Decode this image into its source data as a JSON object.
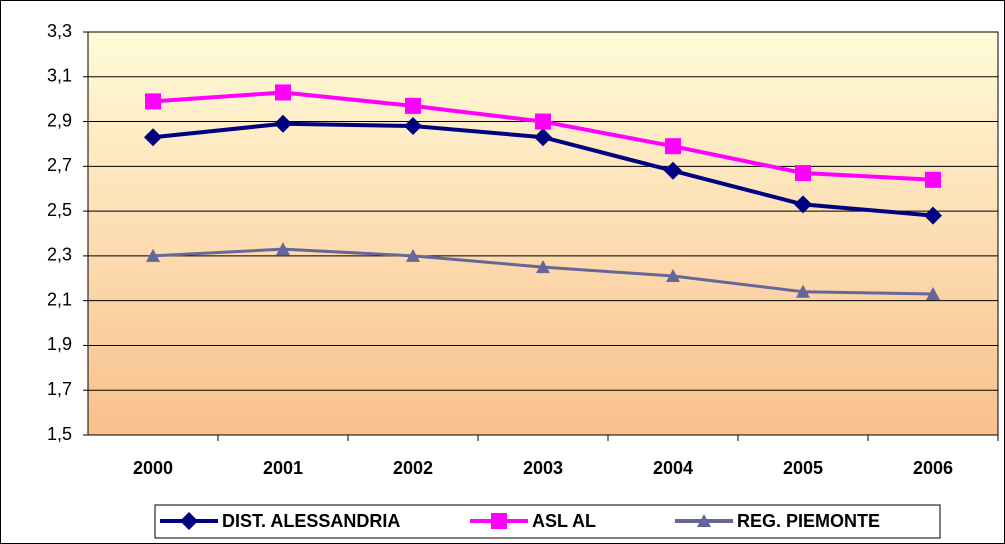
{
  "chart_data": {
    "type": "line",
    "categories": [
      "2000",
      "2001",
      "2002",
      "2003",
      "2004",
      "2005",
      "2006"
    ],
    "series": [
      {
        "name": "DIST. ALESSANDRIA",
        "color": "#000080",
        "marker": "diamond",
        "values": [
          2.83,
          2.89,
          2.88,
          2.83,
          2.68,
          2.53,
          2.48
        ]
      },
      {
        "name": "ASL AL",
        "color": "#ff00ff",
        "marker": "square",
        "values": [
          2.99,
          3.03,
          2.97,
          2.9,
          2.79,
          2.67,
          2.64
        ]
      },
      {
        "name": "REG. PIEMONTE",
        "color": "#666699",
        "marker": "triangle",
        "values": [
          2.3,
          2.33,
          2.3,
          2.25,
          2.21,
          2.14,
          2.13
        ]
      }
    ],
    "ylim": [
      1.5,
      3.3
    ],
    "yticks": [
      {
        "value": 1.5,
        "label": "1,5"
      },
      {
        "value": 1.7,
        "label": "1,7"
      },
      {
        "value": 1.9,
        "label": "1,9"
      },
      {
        "value": 2.1,
        "label": "2,1"
      },
      {
        "value": 2.3,
        "label": "2,3"
      },
      {
        "value": 2.5,
        "label": "2,5"
      },
      {
        "value": 2.7,
        "label": "2,7"
      },
      {
        "value": 2.9,
        "label": "2,9"
      },
      {
        "value": 3.1,
        "label": "3,1"
      },
      {
        "value": 3.3,
        "label": "3,3"
      }
    ],
    "grid": true,
    "legend": "bottom"
  }
}
